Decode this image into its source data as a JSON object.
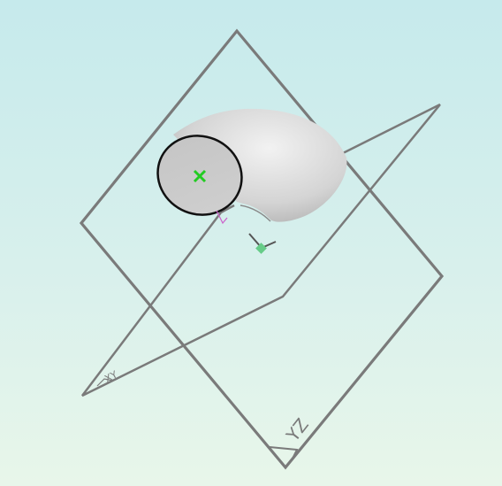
{
  "viewport": {
    "background_top": "#c6eaec",
    "background_bottom": "#e8f6ea"
  },
  "planes": {
    "front": {
      "label": "YZ"
    },
    "top": {
      "label": "XY"
    }
  },
  "model": {
    "type": "pipe-elbow",
    "body_color": "#d9d9d9",
    "edge_color": "#111111"
  },
  "markers": {
    "origin_color": "#22cc22",
    "origin_icon": "plus-marker",
    "axis_triad_icon": "axis-triad",
    "axis_triad_color": "#66cc88"
  }
}
